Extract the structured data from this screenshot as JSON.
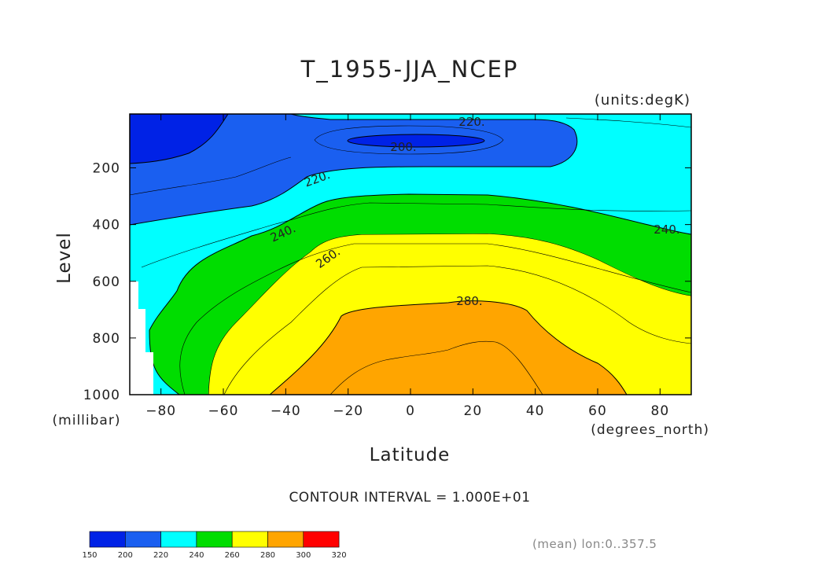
{
  "chart_data": {
    "type": "contour",
    "title": "T_1955-JJA_NCEP",
    "units_label": "(units:degK)",
    "xlabel": "Latitude",
    "xunits": "(degrees_north)",
    "ylabel": "Level",
    "yunits": "(millibar)",
    "xlim": [
      -90,
      90
    ],
    "ylim": [
      1000,
      10
    ],
    "x_ticks": [
      "-80",
      "-60",
      "-40",
      "-20",
      "0",
      "20",
      "40",
      "60",
      "80"
    ],
    "x_tick_values": [
      -80,
      -60,
      -40,
      -20,
      0,
      20,
      40,
      60,
      80
    ],
    "y_ticks": [
      "200",
      "400",
      "600",
      "800",
      "1000"
    ],
    "y_tick_values": [
      200,
      400,
      600,
      800,
      1000
    ],
    "contour_interval_text": "CONTOUR INTERVAL = 1.000E+01",
    "contour_labels": [
      "220.",
      "200.",
      "220.",
      "240.",
      "240.",
      "260.",
      "280."
    ],
    "colorbar": {
      "levels": [
        "150",
        "200",
        "220",
        "240",
        "260",
        "280",
        "300",
        "320"
      ],
      "colors": [
        "#0022e6",
        "#1a5ff0",
        "#00ffff",
        "#00dd00",
        "#ffff00",
        "#ffa500",
        "#ff0000"
      ]
    },
    "footnote": "(mean) lon:0..357.5"
  }
}
